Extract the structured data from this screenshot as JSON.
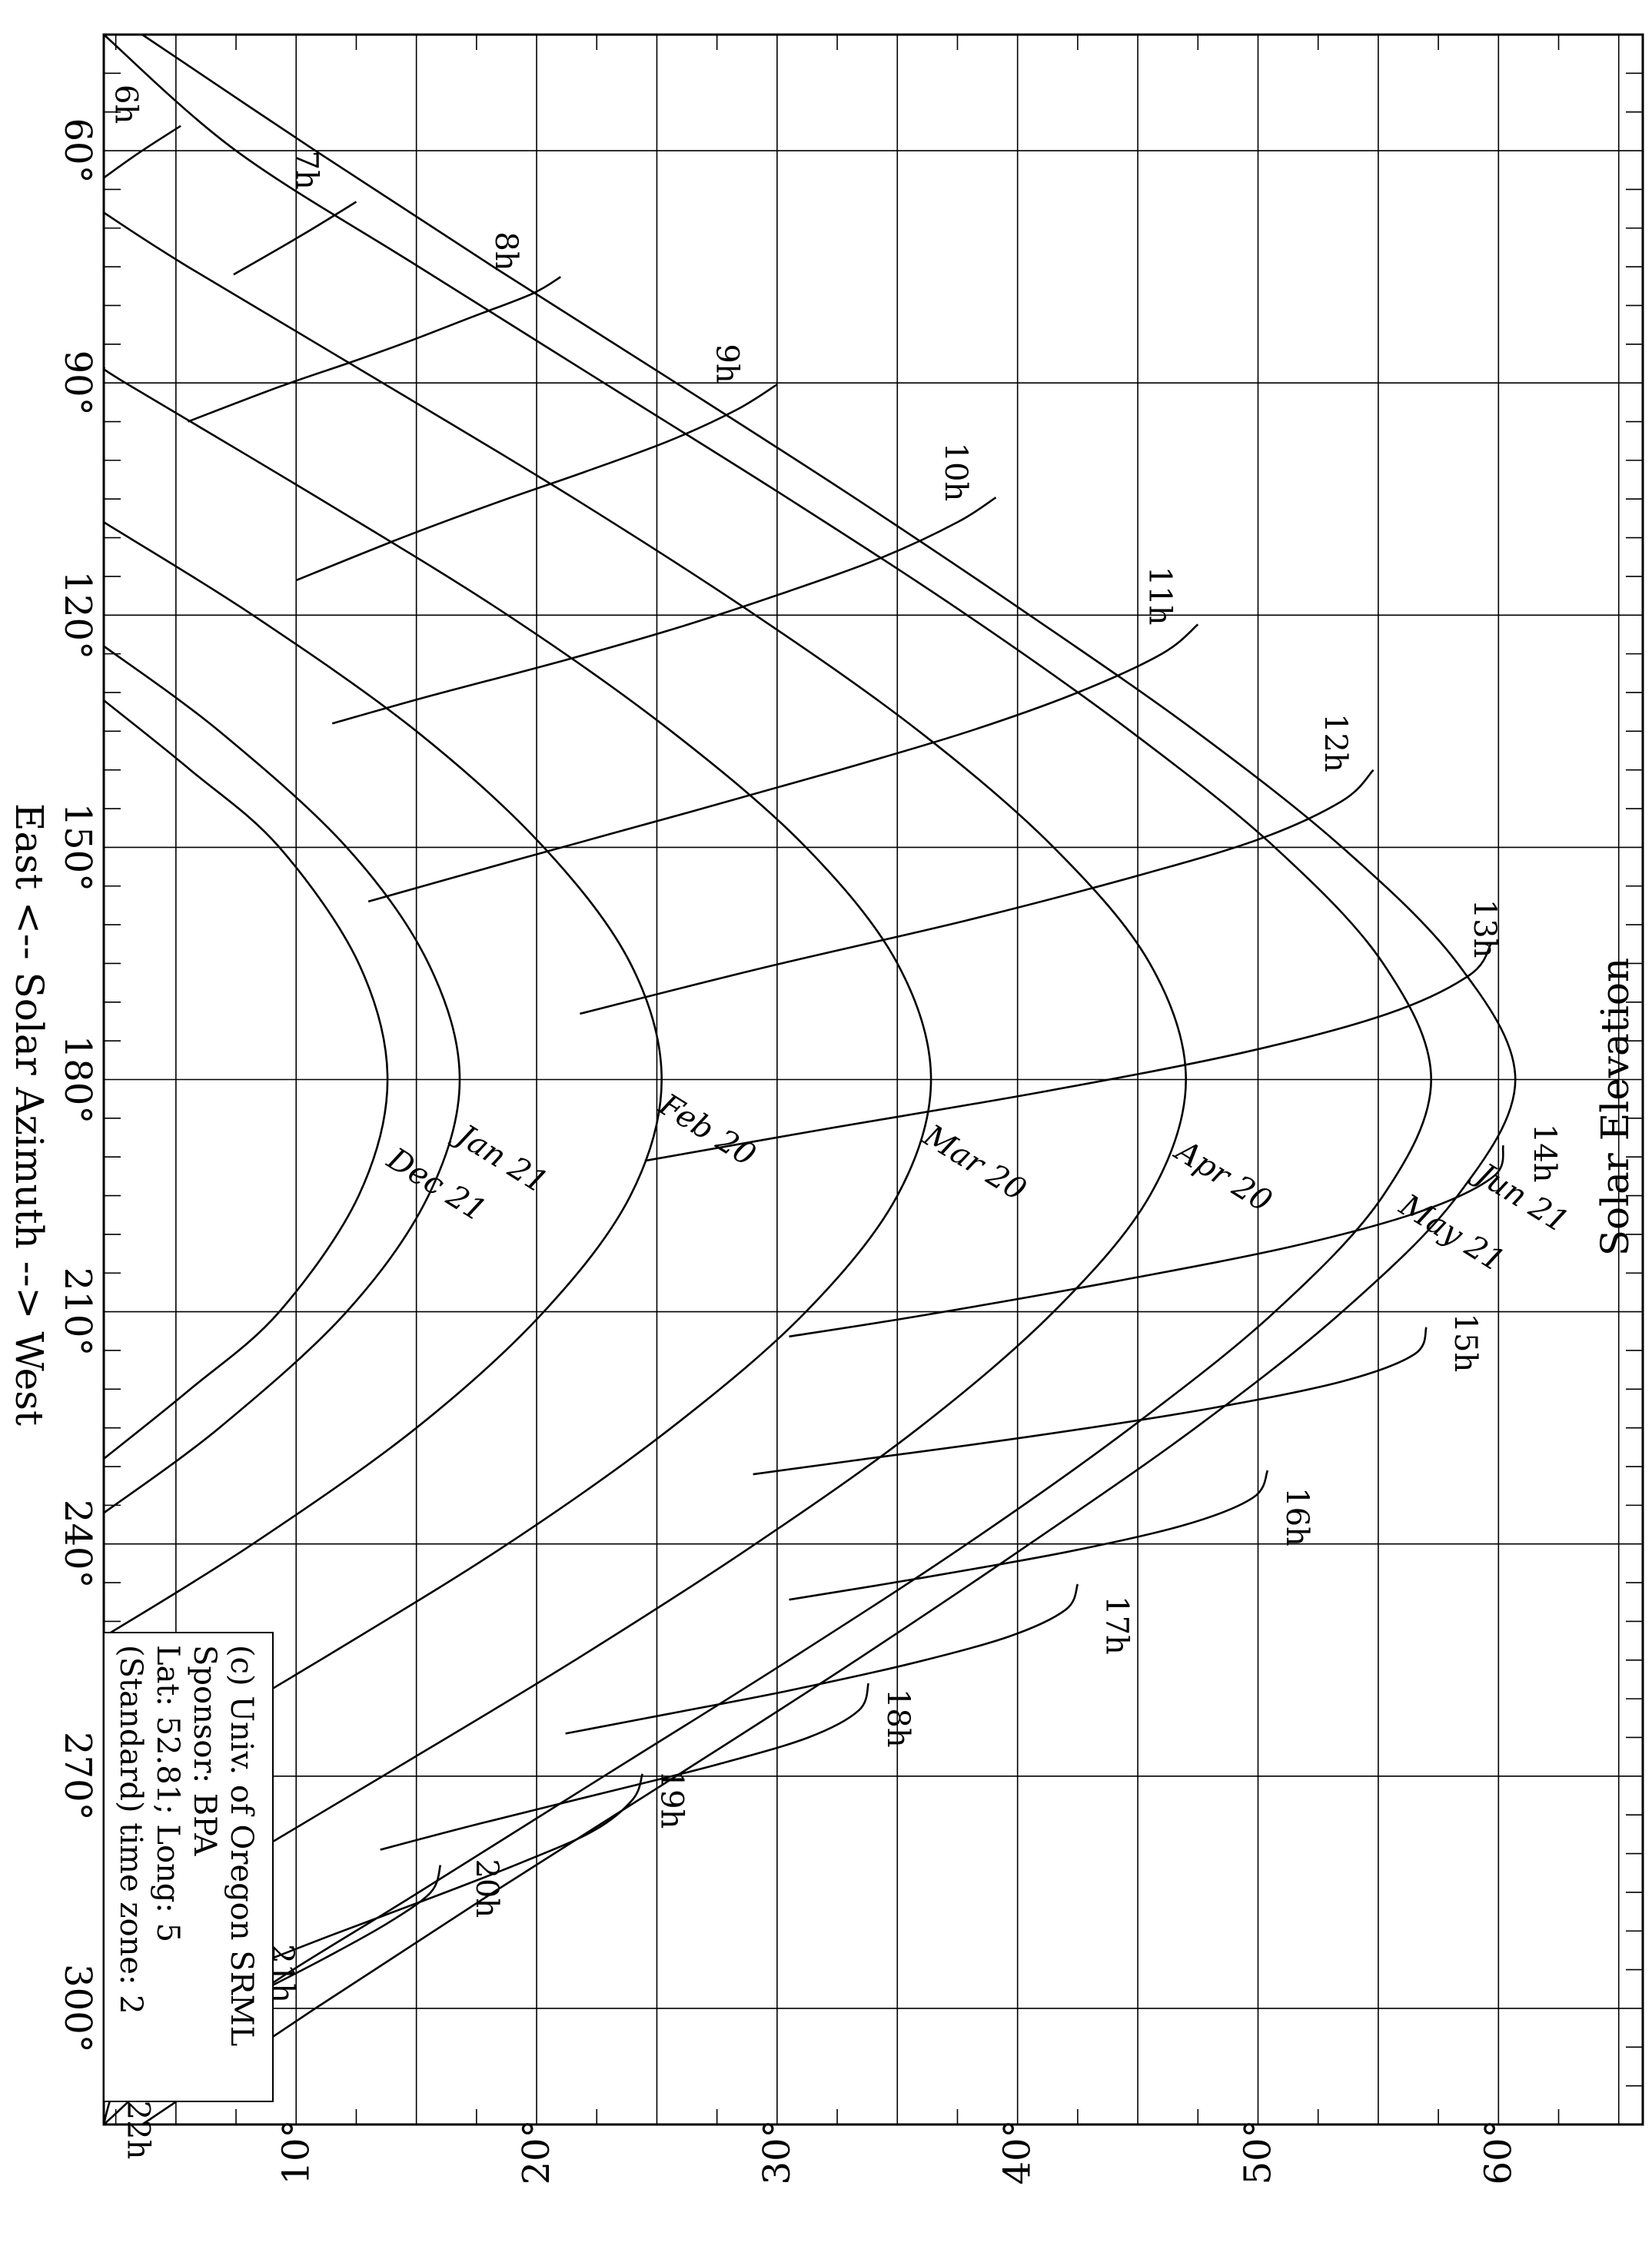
{
  "chart_data": {
    "type": "line",
    "xlabel": "East <-- Solar Azimuth --> West",
    "ylabel": "Solar Elevation",
    "xlim": [
      45,
      315
    ],
    "ylim": [
      2,
      66
    ],
    "x_ticks": [
      {
        "value": 60,
        "label": "60°"
      },
      {
        "value": 90,
        "label": "90°"
      },
      {
        "value": 120,
        "label": "120°"
      },
      {
        "value": 150,
        "label": "150°"
      },
      {
        "value": 180,
        "label": "180°"
      },
      {
        "value": 210,
        "label": "210°"
      },
      {
        "value": 240,
        "label": "240°"
      },
      {
        "value": 270,
        "label": "270°"
      },
      {
        "value": 300,
        "label": "300°"
      }
    ],
    "y_ticks": [
      {
        "value": 10,
        "label": "10°"
      },
      {
        "value": 20,
        "label": "20°"
      },
      {
        "value": 30,
        "label": "30°"
      },
      {
        "value": 40,
        "label": "40°"
      },
      {
        "value": 50,
        "label": "50°"
      },
      {
        "value": 60,
        "label": "60°"
      }
    ],
    "x_minor_step": 5,
    "y_minor_step": 5,
    "grid": true,
    "legend": {
      "position": "bottom-left",
      "lines": [
        "(c) Univ. of Oregon SRML",
        "Sponsor: BPA",
        "Lat: 52.81; Long: 5",
        "(Standard) time zone: 2"
      ]
    },
    "date_series": [
      {
        "name": "Jun 21",
        "x": [
          45,
          60,
          75,
          90,
          105,
          120,
          135,
          150,
          165,
          180,
          195,
          210,
          225,
          240,
          255,
          270,
          285,
          300,
          315
        ],
        "y": [
          3.6,
          10.8,
          18.2,
          25.8,
          33.3,
          40.5,
          47.4,
          53.5,
          58.3,
          60.7,
          58.3,
          53.5,
          47.4,
          40.5,
          33.3,
          25.8,
          18.2,
          10.8,
          3.6
        ]
      },
      {
        "name": "May 21",
        "x": [
          45,
          60,
          75,
          90,
          105,
          120,
          135,
          150,
          165,
          180,
          195,
          210,
          225,
          240,
          255,
          270,
          285,
          300,
          315
        ],
        "y": [
          2,
          7.5,
          15.1,
          22.8,
          30.5,
          37.9,
          44.7,
          50.7,
          55.2,
          57.2,
          55.2,
          50.7,
          44.7,
          37.9,
          30.5,
          22.8,
          15.1,
          7.5,
          2
        ]
      },
      {
        "name": "Apr 20",
        "x": [
          68,
          75,
          90,
          105,
          120,
          135,
          150,
          165,
          180,
          195,
          210,
          225,
          240,
          255,
          270,
          285,
          292
        ],
        "y": [
          2,
          5.5,
          13.6,
          21.6,
          29.1,
          35.9,
          41.5,
          45.5,
          47,
          45.5,
          41.5,
          35.9,
          29.1,
          21.6,
          13.6,
          5.5,
          2
        ]
      },
      {
        "name": "Mar 20",
        "x": [
          88,
          90,
          105,
          120,
          135,
          150,
          165,
          180,
          195,
          210,
          225,
          240,
          255,
          270,
          272
        ],
        "y": [
          2,
          2.9,
          11,
          18.8,
          25.6,
          31.2,
          35,
          36.4,
          35,
          31.2,
          25.6,
          18.8,
          11,
          2.9,
          2
        ]
      },
      {
        "name": "Feb 20",
        "x": [
          108,
          120,
          135,
          150,
          165,
          180,
          195,
          210,
          225,
          240,
          252
        ],
        "y": [
          2,
          8.2,
          15,
          20.3,
          23.9,
          25.2,
          23.9,
          20.3,
          15,
          8.2,
          2
        ]
      },
      {
        "name": "Jan 21",
        "x": [
          124,
          135,
          150,
          165,
          180,
          195,
          210,
          225,
          236
        ],
        "y": [
          2,
          6.8,
          12.1,
          15.5,
          16.8,
          15.5,
          12.1,
          6.8,
          2
        ]
      },
      {
        "name": "Dec 21",
        "x": [
          131,
          140,
          150,
          165,
          180,
          195,
          210,
          220,
          229
        ],
        "y": [
          2,
          5.6,
          9.3,
          12.6,
          13.8,
          12.6,
          9.3,
          5.6,
          2
        ]
      }
    ],
    "hour_series": [
      {
        "name": "6h",
        "x": [
          56.8,
          60.2,
          63.5
        ],
        "y": [
          5.2,
          3.5,
          2
        ]
      },
      {
        "name": "7h",
        "x": [
          66.6,
          70.8,
          76
        ],
        "y": [
          12.5,
          10.3,
          7.4
        ]
      },
      {
        "name": "8h",
        "x": [
          76.3,
          78.5,
          81.5,
          84.5,
          87.3,
          90.5,
          95
        ],
        "y": [
          21,
          19.8,
          17.3,
          14.8,
          12.3,
          9.3,
          5.5
        ]
      },
      {
        "name": "9h",
        "x": [
          90.2,
          93.5,
          97.5,
          101.5,
          105.5,
          110,
          115.5
        ],
        "y": [
          30,
          28.3,
          25.5,
          22,
          18.3,
          14.4,
          10
        ]
      },
      {
        "name": "10h",
        "x": [
          104.8,
          108,
          112.5,
          117,
          121.5,
          125.8,
          130.5,
          134
        ],
        "y": [
          39.1,
          37.5,
          34.4,
          30.4,
          26,
          21.2,
          15.5,
          11.5
        ]
      },
      {
        "name": "11h",
        "x": [
          121.2,
          125,
          130,
          135,
          140,
          145.5,
          151.5,
          157
        ],
        "y": [
          47.5,
          46,
          42.5,
          38,
          32.6,
          26.3,
          19.3,
          13
        ]
      },
      {
        "name": "12h",
        "x": [
          140,
          144,
          149,
          154,
          159.5,
          165.5,
          171.5
        ],
        "y": [
          54.8,
          53.5,
          50,
          44.6,
          37.8,
          29.5,
          21.8
        ]
      },
      {
        "name": "13h",
        "x": [
          162.4,
          166.5,
          171.5,
          176.5,
          181.5,
          186.5,
          190.5
        ],
        "y": [
          59.7,
          58.8,
          55.4,
          49.4,
          41.2,
          31.8,
          24.5
        ]
      },
      {
        "name": "14h",
        "x": [
          188.5,
          192.5,
          197,
          201.5,
          206,
          210.5,
          213.2
        ],
        "y": [
          60.2,
          59.8,
          56.8,
          51.5,
          44.2,
          36,
          30.5
        ]
      },
      {
        "name": "15h",
        "x": [
          212,
          215.5,
          219,
          222.5,
          226,
          229.3,
          231
        ],
        "y": [
          57,
          56.5,
          53.5,
          48,
          40.8,
          33,
          29
        ]
      },
      {
        "name": "16h",
        "x": [
          230.5,
          234,
          237.5,
          241,
          244.5,
          247.2
        ],
        "y": [
          50.4,
          49.8,
          47,
          42.1,
          35.8,
          30.5
        ]
      },
      {
        "name": "17h",
        "x": [
          245.2,
          248.5,
          252,
          255.5,
          259,
          262,
          264.5
        ],
        "y": [
          42.5,
          42,
          39.6,
          35.5,
          30.4,
          25.4,
          21.2
        ]
      },
      {
        "name": "18h",
        "x": [
          258,
          261.5,
          265,
          268.5,
          272,
          276,
          279.5
        ],
        "y": [
          33.8,
          33.4,
          31.3,
          27.5,
          23,
          17.8,
          13.5
        ]
      },
      {
        "name": "19h",
        "x": [
          269.7,
          273,
          277,
          281,
          285.5,
          290.5,
          295
        ],
        "y": [
          24.4,
          24,
          22.4,
          19.5,
          15.8,
          11.5,
          7.8
        ]
      },
      {
        "name": "20h",
        "x": [
          281.5,
          285,
          289,
          293.5,
          298.5,
          303
        ],
        "y": [
          16,
          15.6,
          13.8,
          11.2,
          8.1,
          5.4
        ]
      },
      {
        "name": "21h",
        "x": [
          293.5,
          297,
          301,
          305.5,
          310
        ],
        "y": [
          7.9,
          7.6,
          6.5,
          4.6,
          2.5
        ]
      },
      {
        "name": "22h",
        "x": [
          305.5,
          308.5,
          312.5,
          315
        ],
        "y": [
          2.8,
          2.6,
          2.2,
          2
        ]
      }
    ],
    "date_labels": [
      {
        "series": "Jun 21",
        "x": 193,
        "y": 59
      },
      {
        "series": "May 21",
        "x": 197,
        "y": 55.8
      },
      {
        "series": "Apr 20",
        "x": 190,
        "y": 46.5
      },
      {
        "series": "Mar 20",
        "x": 188,
        "y": 36
      },
      {
        "series": "Feb 20",
        "x": 184,
        "y": 25
      },
      {
        "series": "Jan 21",
        "x": 188,
        "y": 16.6
      },
      {
        "series": "Dec 21",
        "x": 191,
        "y": 13.7
      }
    ],
    "hour_labels": [
      {
        "series": "6h",
        "x": 54,
        "y": 2.5
      },
      {
        "series": "7h",
        "x": 62.5,
        "y": 10
      },
      {
        "series": "8h",
        "x": 73,
        "y": 18.3
      },
      {
        "series": "9h",
        "x": 87.5,
        "y": 27.5
      },
      {
        "series": "10h",
        "x": 101.5,
        "y": 37
      },
      {
        "series": "11h",
        "x": 117.5,
        "y": 45.5
      },
      {
        "series": "12h",
        "x": 136.5,
        "y": 52.8
      },
      {
        "series": "13h",
        "x": 160.5,
        "y": 59
      },
      {
        "series": "14h",
        "x": 189.5,
        "y": 61.5
      },
      {
        "series": "15h",
        "x": 214,
        "y": 58.2
      },
      {
        "series": "16h",
        "x": 236.5,
        "y": 51.2
      },
      {
        "series": "17h",
        "x": 250.5,
        "y": 43.7
      },
      {
        "series": "18h",
        "x": 262.5,
        "y": 34.6
      },
      {
        "series": "19h",
        "x": 273,
        "y": 25.2
      },
      {
        "series": "20h",
        "x": 284.5,
        "y": 17.5
      },
      {
        "series": "21h",
        "x": 295.5,
        "y": 9
      },
      {
        "series": "22h",
        "x": 315.7,
        "y": 3
      }
    ]
  }
}
